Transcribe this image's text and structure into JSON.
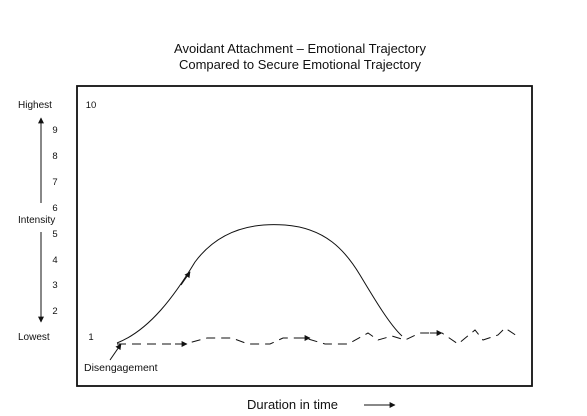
{
  "figure": {
    "title_line1": "Avoidant Attachment – Emotional Trajectory",
    "title_line2": "Compared to Secure Emotional Trajectory",
    "y_high_label": "Highest",
    "y_mid_label": "Intensity",
    "y_low_label": "Lowest",
    "x_label": "Duration in time",
    "annotation": "Disengagement",
    "ticks": [
      "10",
      "9",
      "8",
      "7",
      "6",
      "5",
      "4",
      "3",
      "2",
      "1"
    ]
  }
}
